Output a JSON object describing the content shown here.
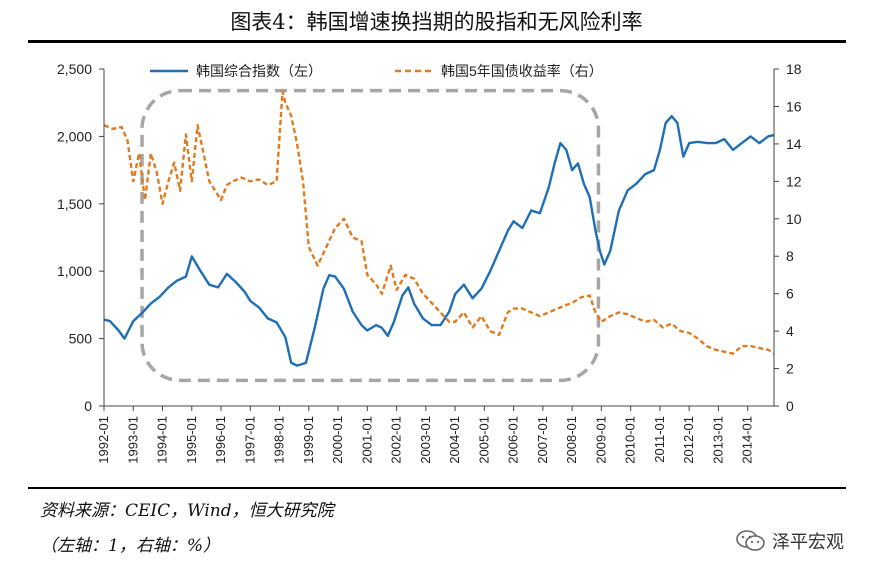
{
  "title": "图表4：韩国增速换挡期的股指和无风险利率",
  "source": "资料来源：CEIC，Wind，恒大研究院",
  "unit_note": "（左轴：1，右轴：%）",
  "brand": {
    "name": "泽平宏观",
    "icon": "wechat-icon"
  },
  "colors": {
    "kospi": "#1f6fb5",
    "bond": "#e07b22",
    "highlight_box": "#a6a6a6",
    "axis": "#444444"
  },
  "chart_data": {
    "type": "line",
    "title": "图表4：韩国增速换挡期的股指和无风险利率",
    "x_tick_labels": [
      "1992-01",
      "1993-01",
      "1994-01",
      "1995-01",
      "1996-01",
      "1997-01",
      "1998-01",
      "1999-01",
      "2000-01",
      "2001-01",
      "2002-01",
      "2003-01",
      "2004-01",
      "2005-01",
      "2006-01",
      "2007-01",
      "2008-01",
      "2009-01",
      "2010-01",
      "2011-01",
      "2012-01",
      "2013-01",
      "2014-01"
    ],
    "x_range": [
      1992.0,
      2014.9
    ],
    "y_left": {
      "range": [
        0,
        2500
      ],
      "ticks": [
        0,
        500,
        1000,
        1500,
        2000,
        2500
      ],
      "tick_labels": [
        "0",
        "500",
        "1,000",
        "1,500",
        "2,000",
        "2,500"
      ]
    },
    "y_right": {
      "range": [
        0,
        18
      ],
      "ticks": [
        0,
        2,
        4,
        6,
        8,
        10,
        12,
        14,
        16,
        18
      ],
      "tick_labels": [
        "0",
        "2",
        "4",
        "6",
        "8",
        "10",
        "12",
        "14",
        "16",
        "18"
      ]
    },
    "highlight": {
      "x_start": 1993.3,
      "x_end": 2008.9,
      "y_left_start": 190,
      "y_left_end": 2340,
      "style": "dashed rounded box"
    },
    "series": [
      {
        "name": "韩国综合指数（左）",
        "axis": "left",
        "style": "solid",
        "x": [
          1992.0,
          1992.2,
          1992.5,
          1992.7,
          1993.0,
          1993.3,
          1993.6,
          1993.9,
          1994.2,
          1994.5,
          1994.8,
          1995.0,
          1995.3,
          1995.6,
          1995.9,
          1996.2,
          1996.5,
          1996.8,
          1997.0,
          1997.3,
          1997.6,
          1997.9,
          1998.2,
          1998.4,
          1998.6,
          1998.9,
          1999.2,
          1999.5,
          1999.7,
          1999.9,
          2000.2,
          2000.5,
          2000.8,
          2001.0,
          2001.3,
          2001.5,
          2001.7,
          2001.9,
          2002.2,
          2002.4,
          2002.6,
          2002.9,
          2003.2,
          2003.5,
          2003.8,
          2004.0,
          2004.3,
          2004.6,
          2004.9,
          2005.2,
          2005.5,
          2005.8,
          2006.0,
          2006.3,
          2006.6,
          2006.9,
          2007.2,
          2007.4,
          2007.6,
          2007.8,
          2008.0,
          2008.2,
          2008.4,
          2008.6,
          2008.8,
          2008.95,
          2009.1,
          2009.3,
          2009.6,
          2009.9,
          2010.2,
          2010.5,
          2010.8,
          2011.0,
          2011.2,
          2011.4,
          2011.6,
          2011.8,
          2012.0,
          2012.3,
          2012.6,
          2012.9,
          2013.2,
          2013.5,
          2013.8,
          2014.1,
          2014.4,
          2014.7,
          2014.9
        ],
        "values": [
          640,
          630,
          560,
          500,
          630,
          690,
          760,
          810,
          880,
          930,
          960,
          1110,
          1000,
          900,
          880,
          980,
          920,
          850,
          780,
          730,
          650,
          620,
          510,
          320,
          300,
          320,
          580,
          870,
          970,
          960,
          870,
          700,
          600,
          560,
          600,
          580,
          520,
          620,
          820,
          880,
          760,
          650,
          600,
          600,
          700,
          830,
          900,
          800,
          870,
          1000,
          1150,
          1300,
          1370,
          1320,
          1450,
          1430,
          1620,
          1800,
          1950,
          1900,
          1750,
          1800,
          1650,
          1550,
          1300,
          1150,
          1050,
          1150,
          1450,
          1600,
          1650,
          1720,
          1750,
          1900,
          2100,
          2150,
          2100,
          1850,
          1950,
          1960,
          1950,
          1950,
          1980,
          1900,
          1950,
          2000,
          1950,
          2000,
          2010
        ]
      },
      {
        "name": "韩国5年国债收益率（右）",
        "axis": "right",
        "style": "dashed",
        "x": [
          1992.0,
          1992.3,
          1992.6,
          1992.8,
          1993.0,
          1993.2,
          1993.4,
          1993.6,
          1993.8,
          1994.0,
          1994.2,
          1994.4,
          1994.6,
          1994.8,
          1995.0,
          1995.2,
          1995.4,
          1995.6,
          1995.8,
          1996.0,
          1996.2,
          1996.4,
          1996.7,
          1997.0,
          1997.3,
          1997.6,
          1997.9,
          1998.1,
          1998.2,
          1998.4,
          1998.6,
          1998.8,
          1999.0,
          1999.3,
          1999.6,
          1999.9,
          2000.2,
          2000.5,
          2000.8,
          2001.0,
          2001.3,
          2001.5,
          2001.8,
          2002.0,
          2002.3,
          2002.6,
          2002.9,
          2003.2,
          2003.5,
          2003.8,
          2004.0,
          2004.3,
          2004.6,
          2004.9,
          2005.2,
          2005.5,
          2005.8,
          2006.0,
          2006.3,
          2006.6,
          2006.9,
          2007.2,
          2007.5,
          2007.8,
          2008.0,
          2008.3,
          2008.6,
          2008.8,
          2009.0,
          2009.3,
          2009.6,
          2009.9,
          2010.2,
          2010.5,
          2010.8,
          2011.1,
          2011.4,
          2011.7,
          2012.0,
          2012.3,
          2012.6,
          2012.9,
          2013.2,
          2013.5,
          2013.8,
          2014.1,
          2014.4,
          2014.7,
          2014.9
        ],
        "values": [
          15.0,
          14.8,
          14.9,
          14.2,
          12.0,
          13.5,
          11.0,
          13.5,
          12.5,
          10.8,
          12.0,
          13.0,
          11.5,
          14.5,
          12.0,
          15.0,
          13.5,
          12.0,
          11.5,
          11.0,
          11.8,
          12.0,
          12.2,
          12.0,
          12.1,
          11.8,
          12.0,
          16.8,
          16.2,
          15.5,
          14.0,
          12.0,
          8.5,
          7.5,
          8.5,
          9.5,
          10.0,
          9.0,
          8.8,
          7.0,
          6.5,
          6.0,
          7.5,
          6.2,
          7.0,
          6.8,
          6.0,
          5.5,
          5.0,
          4.5,
          4.5,
          5.0,
          4.2,
          4.8,
          4.0,
          3.8,
          5.0,
          5.2,
          5.2,
          5.0,
          4.8,
          5.0,
          5.2,
          5.4,
          5.5,
          5.8,
          5.9,
          5.0,
          4.5,
          4.8,
          5.0,
          4.9,
          4.7,
          4.5,
          4.6,
          4.2,
          4.4,
          4.0,
          3.9,
          3.6,
          3.2,
          3.0,
          2.9,
          2.8,
          3.2,
          3.2,
          3.1,
          3.0,
          2.8
        ]
      }
    ],
    "legend": {
      "placement": "top",
      "entries": [
        "韩国综合指数（左）",
        "韩国5年国债收益率（右）"
      ]
    }
  }
}
